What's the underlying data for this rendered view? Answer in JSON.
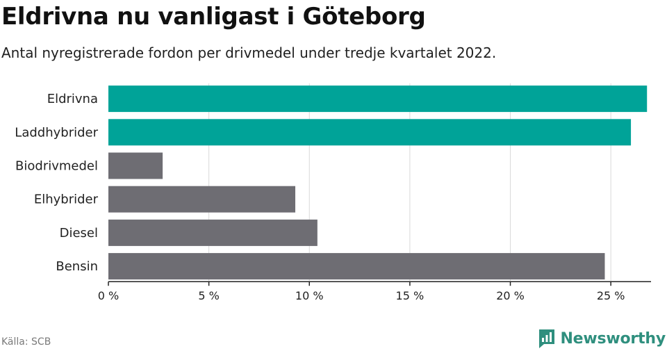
{
  "title": "Eldrivna nu vanligast i Göteborg",
  "subtitle": "Antal nyregistrerade fordon per drivmedel under tredje kvartalet 2022.",
  "source": "Källa: SCB",
  "brand": "Newsworthy",
  "colors": {
    "highlight": "#00a398",
    "default": "#6e6d73",
    "grid": "#d9d9d9",
    "axis": "#222222",
    "brand": "#2f8f7e"
  },
  "chart_data": {
    "type": "bar",
    "orientation": "horizontal",
    "categories": [
      "Eldrivna",
      "Laddhybrider",
      "Biodrivmedel",
      "Elhybrider",
      "Diesel",
      "Bensin"
    ],
    "values": [
      26.8,
      26.0,
      2.7,
      9.3,
      10.4,
      24.7
    ],
    "highlighted": [
      true,
      true,
      false,
      false,
      false,
      false
    ],
    "xlim": [
      0,
      27
    ],
    "xticks": [
      0,
      5,
      10,
      15,
      20,
      25
    ],
    "xtick_labels": [
      "0 %",
      "5 %",
      "10 %",
      "15 %",
      "20 %",
      "25 %"
    ],
    "grid": true
  }
}
